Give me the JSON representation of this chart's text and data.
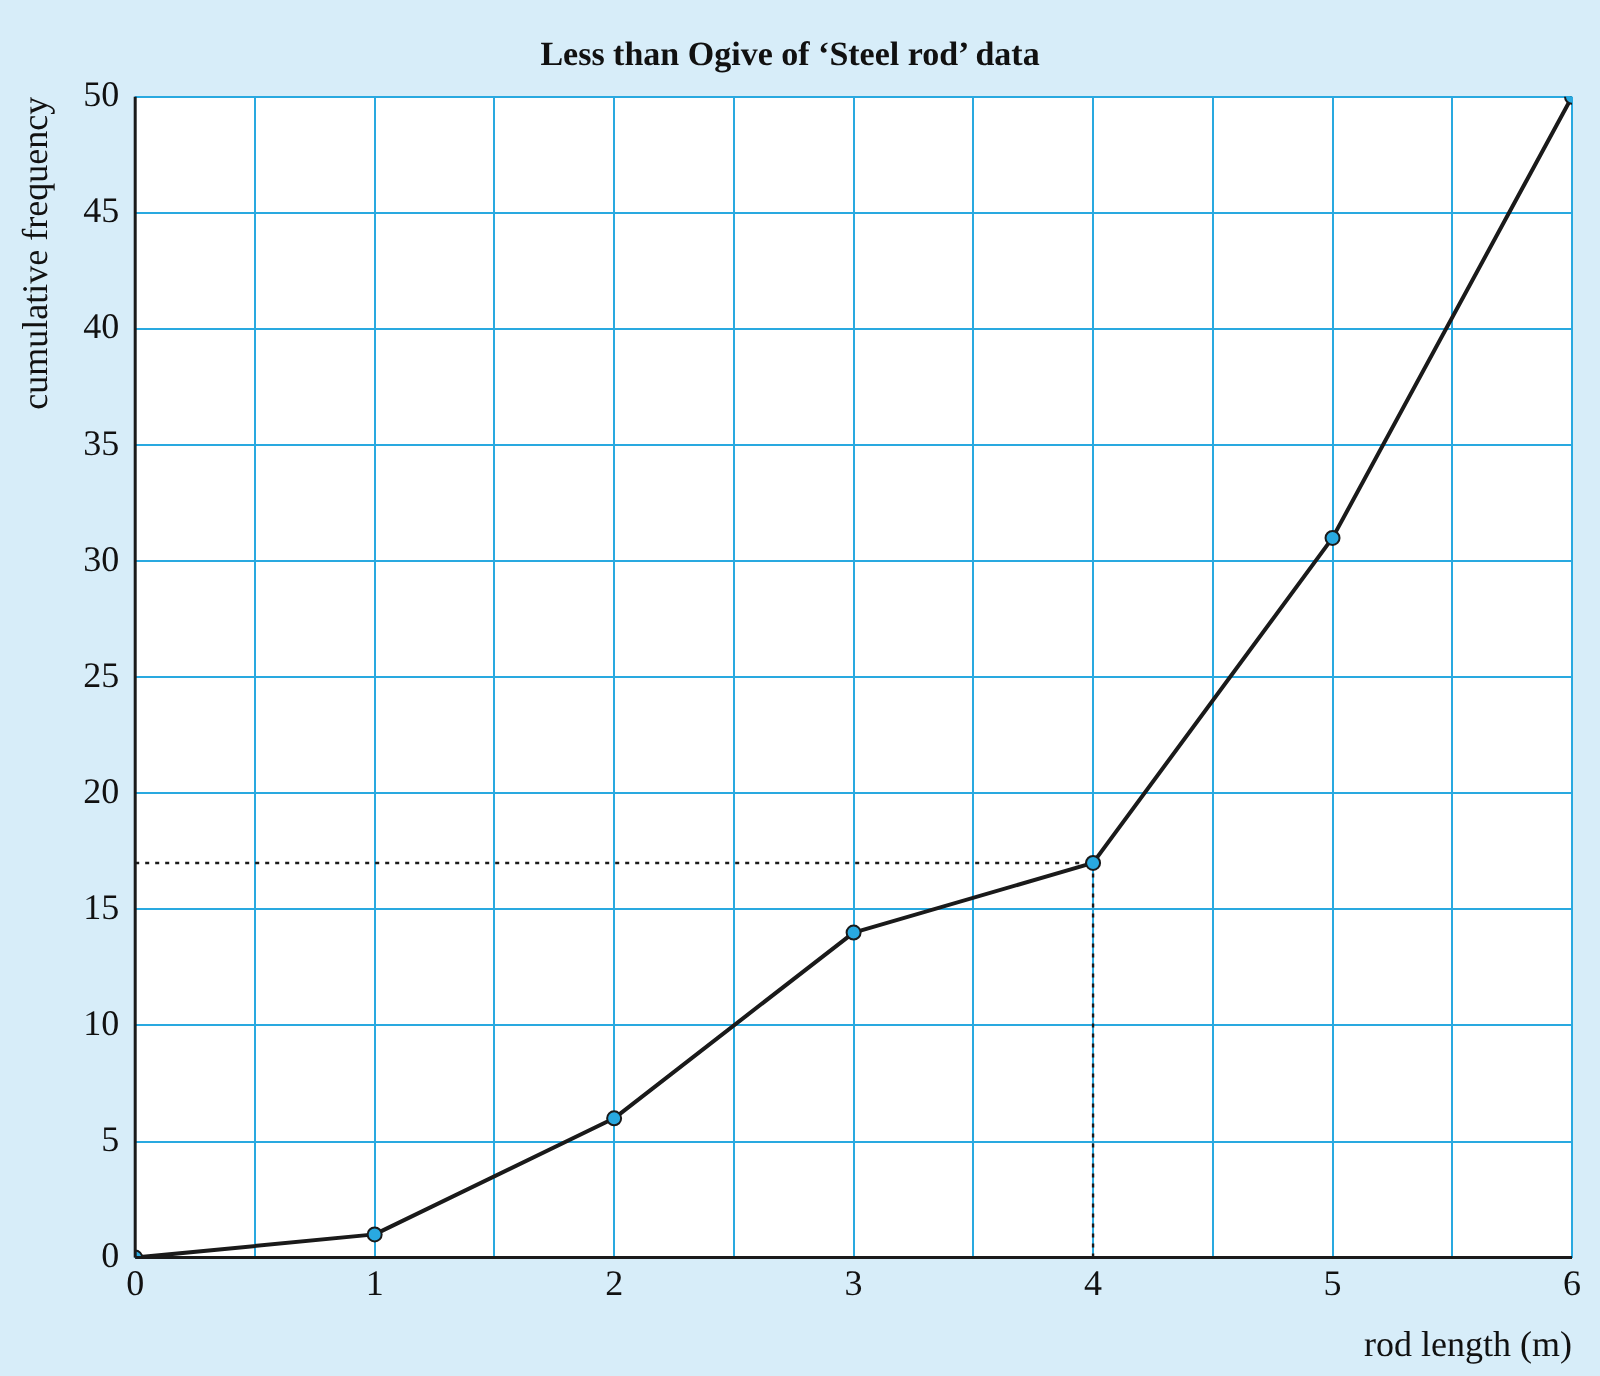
{
  "chart_data": {
    "type": "line",
    "title": "Less than Ogive of ‘Steel rod’ data",
    "xlabel": "rod length (m)",
    "ylabel": "cumulative frequency",
    "x": [
      0,
      1,
      2,
      3,
      4,
      5,
      6
    ],
    "series": [
      {
        "color": "#1a1a1a",
        "values": [
          0,
          1,
          6,
          14,
          17,
          31,
          50
        ]
      }
    ],
    "xlim": [
      0,
      6
    ],
    "xticks": [
      0,
      {
        "value": 0.5,
        "label": null
      },
      1,
      {
        "value": 1.5,
        "label": null
      },
      2,
      {
        "value": 2.5,
        "label": null
      },
      3,
      {
        "value": 3.5,
        "label": null
      },
      4,
      {
        "value": 4.5,
        "label": null
      },
      5,
      {
        "value": 5.5,
        "label": null
      },
      6
    ],
    "ylim": [
      0,
      50
    ],
    "yticks": [
      0,
      5,
      10,
      15,
      20,
      25,
      30,
      35,
      40,
      45,
      50
    ],
    "grid": true,
    "legend": false,
    "marker": "circle",
    "line_style": "solid",
    "ref_lines": [
      {
        "axis": "y",
        "value": 17,
        "line_style": "dotted",
        "color": "#1a1a1a"
      },
      {
        "axis": "x",
        "value": 4,
        "line_style": "dotted",
        "color": "#1a1a1a"
      }
    ]
  }
}
